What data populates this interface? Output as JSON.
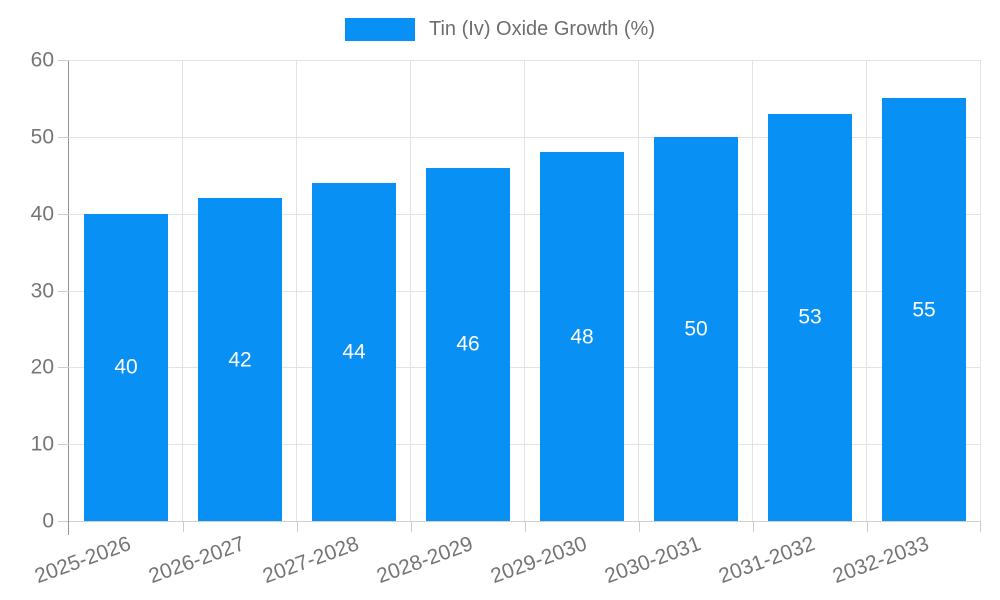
{
  "chart_data": {
    "type": "bar",
    "title": "",
    "legend": "Tin (Iv) Oxide Growth (%)",
    "legend_position": "top-center",
    "categories": [
      "2025-2026",
      "2026-2027",
      "2027-2028",
      "2028-2029",
      "2029-2030",
      "2030-2031",
      "2031-2032",
      "2032-2033"
    ],
    "series": [
      {
        "name": "Tin (Iv) Oxide Growth (%)",
        "values": [
          40,
          42,
          44,
          46,
          48,
          50,
          53,
          55
        ]
      }
    ],
    "value_labels": "inside-center",
    "xlabel": "",
    "ylabel": "",
    "ylim": [
      0,
      60
    ],
    "yticks": [
      0,
      10,
      20,
      30,
      40,
      50,
      60
    ],
    "grid": true,
    "x_label_rotation_deg": -20,
    "colors": {
      "bar": "#0990f5",
      "grid": "#e3e3e3",
      "axis": "#949494",
      "axis_bottom": "#cfcfcf",
      "boundary_tick": "#cccccc",
      "axis_text": "#757575",
      "legend_text": "#6e6e6e",
      "value_text": "#ffffff",
      "background": "#ffffff"
    }
  }
}
